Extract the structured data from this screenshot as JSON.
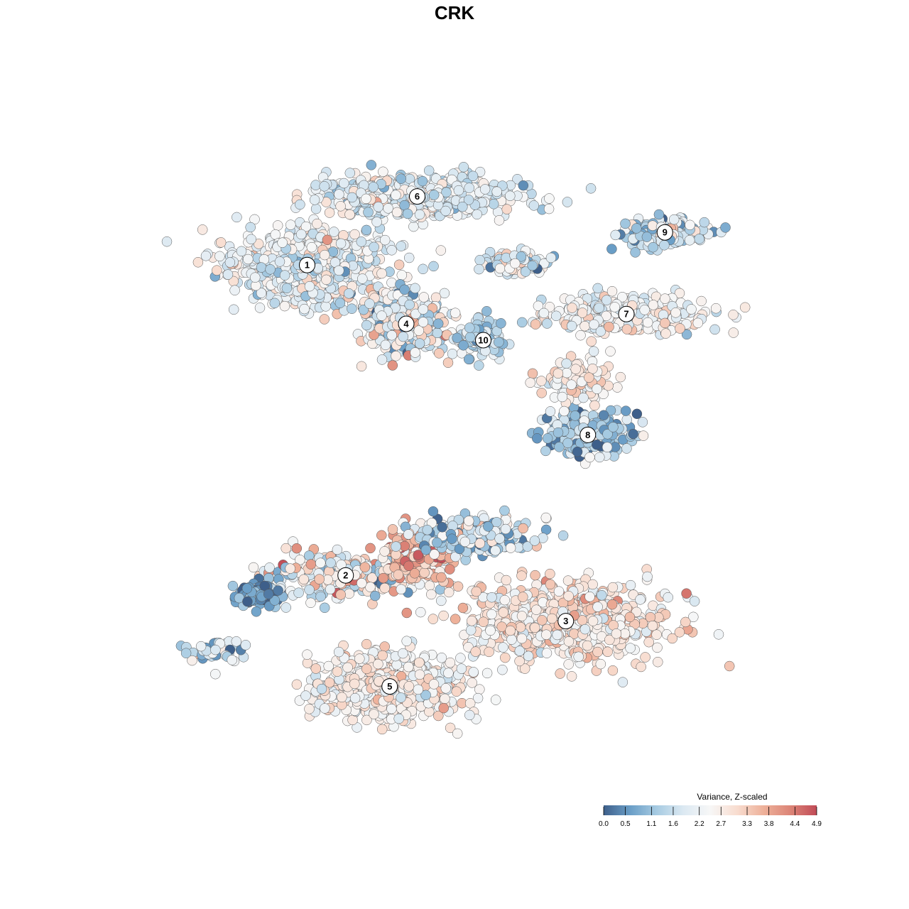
{
  "chart_data": {
    "type": "scatter",
    "title": "CRK",
    "xlabel": "",
    "ylabel": "",
    "grid": false,
    "legend": {
      "title": "Variance, Z-scaled",
      "placement": "bottom-right",
      "ticks": [
        "0.0",
        "0.5",
        "1.1",
        "1.6",
        "2.2",
        "2.7",
        "3.3",
        "3.8",
        "4.4",
        "4.9"
      ],
      "range": [
        0.0,
        4.9
      ]
    },
    "colorscale": [
      "#3e5f8a",
      "#6a9ec7",
      "#a7cbe2",
      "#dce9f2",
      "#f7f7f7",
      "#f8ddd0",
      "#eeb19a",
      "#dc8577",
      "#c14b57"
    ],
    "clusters": [
      {
        "label": "1",
        "x": 1.5,
        "y": 7.3,
        "sx": 1.25,
        "sy": 1.05,
        "n": 750,
        "mean": 2.2,
        "spread": 0.55
      },
      {
        "label": "2",
        "x": 2.2,
        "y": -2.2,
        "sx": 1.3,
        "sy": 0.6,
        "n": 260,
        "mean": 2.3,
        "spread": 0.9
      },
      {
        "label": "3",
        "x": 6.2,
        "y": -3.6,
        "sx": 1.7,
        "sy": 1.1,
        "n": 650,
        "mean": 2.8,
        "spread": 0.5
      },
      {
        "label": "4",
        "x": 3.3,
        "y": 5.5,
        "sx": 0.65,
        "sy": 0.85,
        "n": 340,
        "mean": 2.1,
        "spread": 0.8
      },
      {
        "label": "5",
        "x": 3.0,
        "y": -5.6,
        "sx": 1.2,
        "sy": 0.9,
        "n": 620,
        "mean": 2.55,
        "spread": 0.45
      },
      {
        "label": "6",
        "x": 3.5,
        "y": 9.4,
        "sx": 1.5,
        "sy": 0.55,
        "n": 700,
        "mean": 2.0,
        "spread": 0.5
      },
      {
        "label": "7",
        "x": 7.3,
        "y": 5.8,
        "sx": 1.3,
        "sy": 0.5,
        "n": 300,
        "mean": 2.35,
        "spread": 0.5
      },
      {
        "label": "8",
        "x": 6.6,
        "y": 2.1,
        "sx": 0.65,
        "sy": 0.55,
        "n": 280,
        "mean": 1.1,
        "spread": 0.7
      },
      {
        "label": "9",
        "x": 8.0,
        "y": 8.3,
        "sx": 0.75,
        "sy": 0.45,
        "n": 130,
        "mean": 1.7,
        "spread": 0.7
      },
      {
        "label": "10",
        "x": 4.7,
        "y": 5.0,
        "sx": 0.4,
        "sy": 0.55,
        "n": 100,
        "mean": 1.4,
        "spread": 0.5
      },
      {
        "label": "",
        "x": 3.5,
        "y": -1.5,
        "sx": 0.6,
        "sy": 0.7,
        "n": 180,
        "mean": 3.6,
        "spread": 0.6
      },
      {
        "label": "",
        "x": 4.6,
        "y": -1.0,
        "sx": 0.9,
        "sy": 0.5,
        "n": 220,
        "mean": 1.6,
        "spread": 0.8
      },
      {
        "label": "",
        "x": 0.6,
        "y": -2.8,
        "sx": 0.5,
        "sy": 0.35,
        "n": 90,
        "mean": 0.6,
        "spread": 0.5
      },
      {
        "label": "",
        "x": 6.4,
        "y": 3.7,
        "sx": 0.55,
        "sy": 0.6,
        "n": 110,
        "mean": 2.6,
        "spread": 0.5
      },
      {
        "label": "",
        "x": -0.1,
        "y": -4.5,
        "sx": 0.5,
        "sy": 0.3,
        "n": 45,
        "mean": 1.8,
        "spread": 0.7
      },
      {
        "label": "",
        "x": 5.3,
        "y": 7.4,
        "sx": 0.5,
        "sy": 0.35,
        "n": 90,
        "mean": 2.0,
        "spread": 0.7
      }
    ],
    "xlim": [
      -1.5,
      10.5
    ],
    "ylim": [
      -8.5,
      11.5
    ]
  }
}
